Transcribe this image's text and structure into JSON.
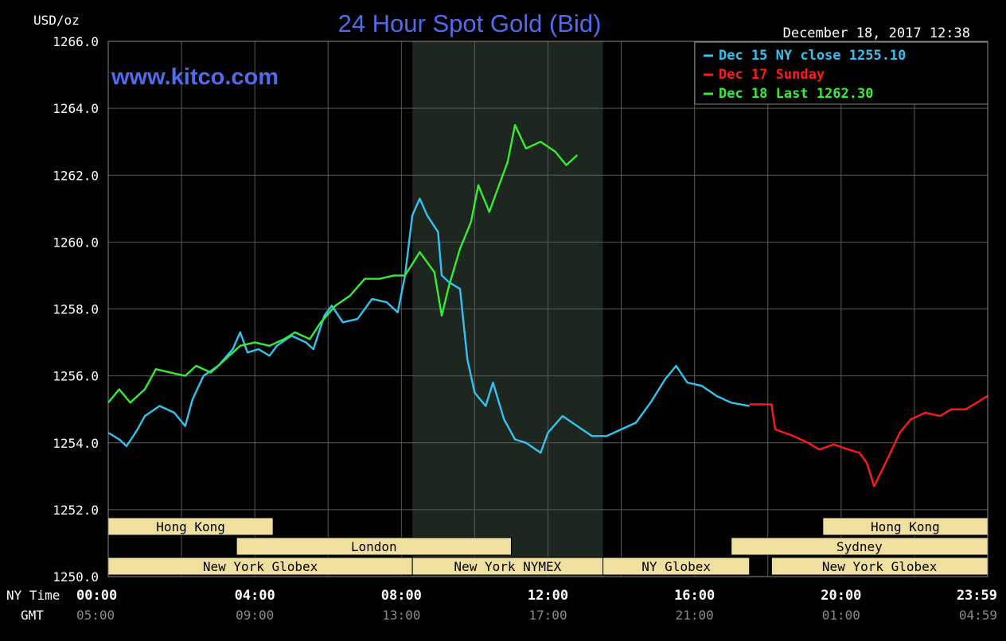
{
  "header": {
    "title": "24 Hour Spot Gold (Bid)",
    "website": "www.kitco.com",
    "timestamp": "December 18, 2017 12:38",
    "unit": "USD/oz"
  },
  "colors": {
    "title": "#4f6cf0",
    "dec15": "#33c3f0",
    "dec17": "#ff1a1a",
    "dec18": "#33ee33",
    "session_fill": "#f0e0a0",
    "session_text": "#000000",
    "grid": "#5a5a5a",
    "shade": "#1e2620"
  },
  "legend": [
    {
      "label": "Dec 15 NY close 1255.10",
      "color": "#33c3f0"
    },
    {
      "label": "Dec 17 Sunday",
      "color": "#ff1a1a"
    },
    {
      "label": "Dec 18 Last 1262.30",
      "color": "#33ee33"
    }
  ],
  "axes": {
    "y_ticks": [
      "1266.0",
      "1264.0",
      "1262.0",
      "1260.0",
      "1258.0",
      "1256.0",
      "1254.0",
      "1252.0",
      "1250.0"
    ],
    "ny_label": "NY Time",
    "gmt_label": "GMT",
    "ny_ticks": [
      {
        "h": 0,
        "label": "00:00"
      },
      {
        "h": 4,
        "label": "04:00"
      },
      {
        "h": 8,
        "label": "08:00"
      },
      {
        "h": 12,
        "label": "12:00"
      },
      {
        "h": 16,
        "label": "16:00"
      },
      {
        "h": 20,
        "label": "20:00"
      },
      {
        "h": 23.98,
        "label": "23:59"
      }
    ],
    "gmt_ticks": [
      {
        "h": 0,
        "label": "05:00"
      },
      {
        "h": 4,
        "label": "09:00"
      },
      {
        "h": 8,
        "label": "13:00"
      },
      {
        "h": 12,
        "label": "17:00"
      },
      {
        "h": 16,
        "label": "21:00"
      },
      {
        "h": 20,
        "label": "01:00"
      },
      {
        "h": 23.98,
        "label": "04:59"
      }
    ]
  },
  "sessions": [
    {
      "label": "Hong Kong",
      "row": 0,
      "start": 0,
      "end": 4.5
    },
    {
      "label": "Hong Kong",
      "row": 0,
      "start": 19.5,
      "end": 24
    },
    {
      "label": "London",
      "row": 1,
      "start": 3.5,
      "end": 11.0
    },
    {
      "label": "Sydney",
      "row": 1,
      "start": 17.0,
      "end": 24
    },
    {
      "label": "New York Globex",
      "row": 2,
      "start": 0,
      "end": 8.3
    },
    {
      "label": "New York NYMEX",
      "row": 2,
      "start": 8.3,
      "end": 13.5
    },
    {
      "label": "NY Globex",
      "row": 2,
      "start": 13.5,
      "end": 17.5
    },
    {
      "label": "New York Globex",
      "row": 2,
      "start": 18.1,
      "end": 24
    }
  ],
  "chart_data": {
    "type": "line",
    "title": "24 Hour Spot Gold (Bid)",
    "ylabel": "USD/oz",
    "ylim": [
      1250,
      1266
    ],
    "xlim": [
      0,
      24
    ],
    "x_unit": "hours (NY time)",
    "shaded_region": [
      8.3,
      13.5
    ],
    "series": [
      {
        "name": "Dec 15 NY close 1255.10",
        "color": "#33c3f0",
        "points": [
          [
            0,
            1254.3
          ],
          [
            0.3,
            1254.1
          ],
          [
            0.5,
            1253.9
          ],
          [
            0.8,
            1254.4
          ],
          [
            1.0,
            1254.8
          ],
          [
            1.4,
            1255.1
          ],
          [
            1.8,
            1254.9
          ],
          [
            2.1,
            1254.5
          ],
          [
            2.3,
            1255.3
          ],
          [
            2.6,
            1256.0
          ],
          [
            3.0,
            1256.3
          ],
          [
            3.4,
            1256.8
          ],
          [
            3.6,
            1257.3
          ],
          [
            3.8,
            1256.7
          ],
          [
            4.1,
            1256.8
          ],
          [
            4.4,
            1256.6
          ],
          [
            4.6,
            1256.9
          ],
          [
            5.0,
            1257.2
          ],
          [
            5.4,
            1257.0
          ],
          [
            5.6,
            1256.8
          ],
          [
            5.9,
            1257.8
          ],
          [
            6.1,
            1258.1
          ],
          [
            6.4,
            1257.6
          ],
          [
            6.8,
            1257.7
          ],
          [
            7.2,
            1258.3
          ],
          [
            7.6,
            1258.2
          ],
          [
            7.9,
            1257.9
          ],
          [
            8.1,
            1259.0
          ],
          [
            8.3,
            1260.8
          ],
          [
            8.5,
            1261.3
          ],
          [
            8.7,
            1260.8
          ],
          [
            9.0,
            1260.3
          ],
          [
            9.1,
            1259.0
          ],
          [
            9.3,
            1258.8
          ],
          [
            9.6,
            1258.6
          ],
          [
            9.8,
            1256.5
          ],
          [
            10.0,
            1255.5
          ],
          [
            10.3,
            1255.1
          ],
          [
            10.5,
            1255.8
          ],
          [
            10.8,
            1254.7
          ],
          [
            11.1,
            1254.1
          ],
          [
            11.4,
            1254.0
          ],
          [
            11.8,
            1253.7
          ],
          [
            12.0,
            1254.3
          ],
          [
            12.4,
            1254.8
          ],
          [
            12.8,
            1254.5
          ],
          [
            13.2,
            1254.2
          ],
          [
            13.6,
            1254.2
          ],
          [
            14.0,
            1254.4
          ],
          [
            14.4,
            1254.6
          ],
          [
            14.8,
            1255.2
          ],
          [
            15.2,
            1255.9
          ],
          [
            15.5,
            1256.3
          ],
          [
            15.8,
            1255.8
          ],
          [
            16.2,
            1255.7
          ],
          [
            16.6,
            1255.4
          ],
          [
            17.0,
            1255.2
          ],
          [
            17.5,
            1255.1
          ]
        ]
      },
      {
        "name": "Dec 17 Sunday",
        "color": "#ff1a1a",
        "points": [
          [
            17.5,
            1255.15
          ],
          [
            18.1,
            1255.15
          ],
          [
            18.2,
            1254.4
          ],
          [
            18.7,
            1254.2
          ],
          [
            19.1,
            1254.0
          ],
          [
            19.4,
            1253.8
          ],
          [
            19.8,
            1253.95
          ],
          [
            20.2,
            1253.8
          ],
          [
            20.5,
            1253.7
          ],
          [
            20.7,
            1253.4
          ],
          [
            20.9,
            1252.7
          ],
          [
            21.3,
            1253.6
          ],
          [
            21.6,
            1254.3
          ],
          [
            21.9,
            1254.7
          ],
          [
            22.3,
            1254.9
          ],
          [
            22.7,
            1254.8
          ],
          [
            23.0,
            1255.0
          ],
          [
            23.4,
            1255.0
          ],
          [
            23.7,
            1255.2
          ],
          [
            24.0,
            1255.4
          ]
        ]
      },
      {
        "name": "Dec 18 Last 1262.30",
        "color": "#33ee33",
        "points": [
          [
            0,
            1255.2
          ],
          [
            0.3,
            1255.6
          ],
          [
            0.6,
            1255.2
          ],
          [
            1.0,
            1255.6
          ],
          [
            1.3,
            1256.2
          ],
          [
            1.7,
            1256.1
          ],
          [
            2.1,
            1256.0
          ],
          [
            2.4,
            1256.3
          ],
          [
            2.8,
            1256.1
          ],
          [
            3.2,
            1256.5
          ],
          [
            3.6,
            1256.9
          ],
          [
            4.0,
            1257.0
          ],
          [
            4.4,
            1256.9
          ],
          [
            4.8,
            1257.1
          ],
          [
            5.1,
            1257.3
          ],
          [
            5.5,
            1257.1
          ],
          [
            5.8,
            1257.6
          ],
          [
            6.2,
            1258.1
          ],
          [
            6.6,
            1258.4
          ],
          [
            7.0,
            1258.9
          ],
          [
            7.4,
            1258.9
          ],
          [
            7.8,
            1259.0
          ],
          [
            8.1,
            1259.0
          ],
          [
            8.5,
            1259.7
          ],
          [
            8.9,
            1259.1
          ],
          [
            9.1,
            1257.8
          ],
          [
            9.3,
            1258.7
          ],
          [
            9.6,
            1259.8
          ],
          [
            9.9,
            1260.6
          ],
          [
            10.1,
            1261.7
          ],
          [
            10.4,
            1260.9
          ],
          [
            10.7,
            1261.8
          ],
          [
            10.9,
            1262.4
          ],
          [
            11.1,
            1263.5
          ],
          [
            11.4,
            1262.8
          ],
          [
            11.8,
            1263.0
          ],
          [
            12.2,
            1262.7
          ],
          [
            12.5,
            1262.3
          ],
          [
            12.8,
            1262.6
          ]
        ]
      }
    ]
  }
}
